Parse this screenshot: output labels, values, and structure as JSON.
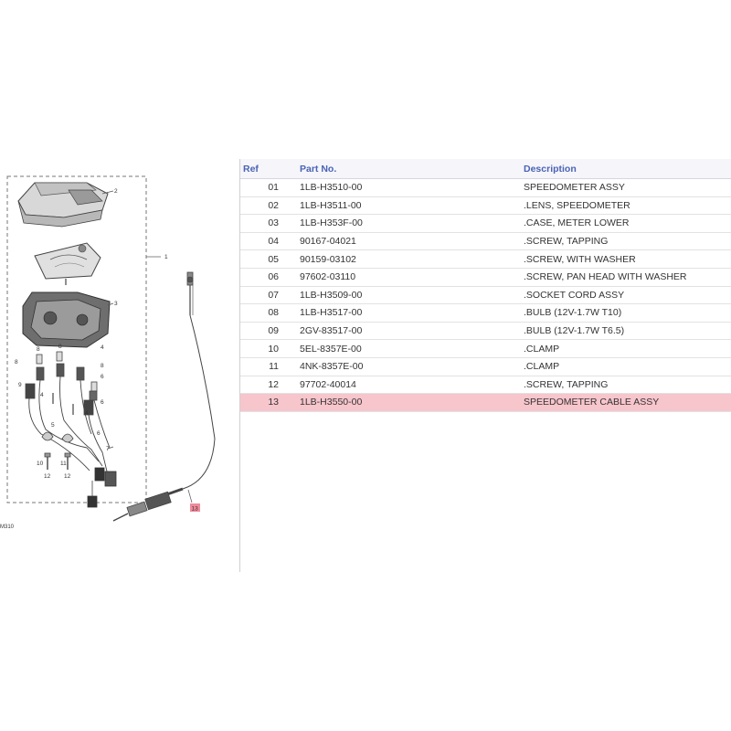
{
  "diagram": {
    "callouts": [
      {
        "label": "1"
      },
      {
        "label": "2"
      },
      {
        "label": "3"
      },
      {
        "label": "4"
      },
      {
        "label": "4"
      },
      {
        "label": "4"
      },
      {
        "label": "5"
      },
      {
        "label": "6"
      },
      {
        "label": "6"
      },
      {
        "label": "6"
      },
      {
        "label": "7"
      },
      {
        "label": "8"
      },
      {
        "label": "8"
      },
      {
        "label": "8"
      },
      {
        "label": "8"
      },
      {
        "label": "9"
      },
      {
        "label": "10"
      },
      {
        "label": "11"
      },
      {
        "label": "12"
      },
      {
        "label": "12"
      }
    ],
    "selected_callout": "13",
    "figure_code": "M310",
    "highlight_color": "#f08a9a"
  },
  "table": {
    "headers": {
      "ref": "Ref",
      "part_no": "Part No.",
      "description": "Description"
    },
    "rows": [
      {
        "ref": "01",
        "part_no": "1LB-H3510-00",
        "description": "SPEEDOMETER ASSY"
      },
      {
        "ref": "02",
        "part_no": "1LB-H3511-00",
        "description": ".LENS, SPEEDOMETER"
      },
      {
        "ref": "03",
        "part_no": "1LB-H353F-00",
        "description": ".CASE, METER LOWER"
      },
      {
        "ref": "04",
        "part_no": "90167-04021",
        "description": ".SCREW, TAPPING"
      },
      {
        "ref": "05",
        "part_no": "90159-03102",
        "description": ".SCREW, WITH WASHER"
      },
      {
        "ref": "06",
        "part_no": "97602-03110",
        "description": ".SCREW, PAN HEAD WITH WASHER"
      },
      {
        "ref": "07",
        "part_no": "1LB-H3509-00",
        "description": ".SOCKET CORD ASSY"
      },
      {
        "ref": "08",
        "part_no": "1LB-H3517-00",
        "description": ".BULB (12V-1.7W T10)"
      },
      {
        "ref": "09",
        "part_no": "2GV-83517-00",
        "description": ".BULB (12V-1.7W T6.5)"
      },
      {
        "ref": "10",
        "part_no": "5EL-8357E-00",
        "description": ".CLAMP"
      },
      {
        "ref": "11",
        "part_no": "4NK-8357E-00",
        "description": ".CLAMP"
      },
      {
        "ref": "12",
        "part_no": "97702-40014",
        "description": ".SCREW, TAPPING"
      },
      {
        "ref": "13",
        "part_no": "1LB-H3550-00",
        "description": "SPEEDOMETER CABLE ASSY"
      }
    ],
    "highlighted_ref": "13",
    "colors": {
      "header_text": "#4a63b5",
      "highlight_row": "#f7c5cc"
    }
  }
}
